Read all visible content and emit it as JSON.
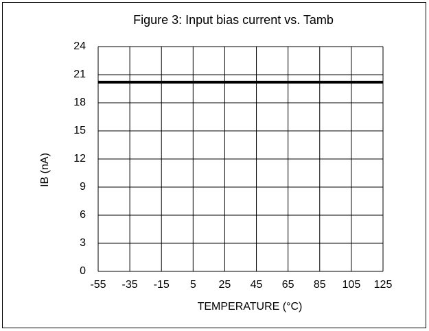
{
  "chart_data": {
    "type": "line",
    "title": "Figure 3: Input bias current vs. Tamb",
    "x_label": "TEMPERATURE (°C)",
    "y_label": "IB  (nA)",
    "x": [
      -55,
      125
    ],
    "series": [
      {
        "name": "IB",
        "color": "#000000",
        "values": [
          20.2,
          20.2
        ]
      }
    ],
    "xlim": [
      -55,
      125
    ],
    "xticks": [
      -55,
      -35,
      -15,
      5,
      25,
      45,
      65,
      85,
      105,
      125
    ],
    "ylim": [
      0,
      24
    ],
    "yticks": [
      0,
      3,
      6,
      9,
      12,
      15,
      18,
      21,
      24
    ],
    "grid": true
  }
}
